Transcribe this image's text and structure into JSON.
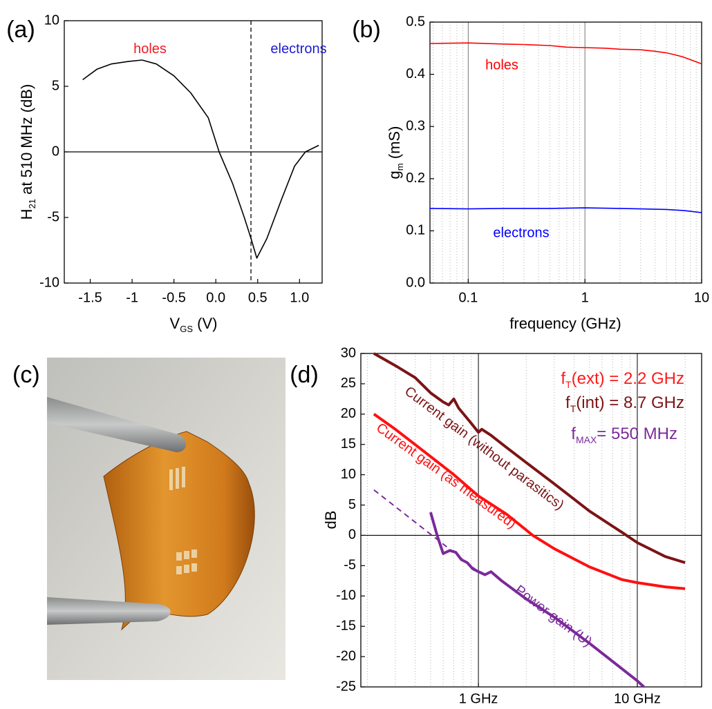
{
  "chart_data": [
    {
      "type": "line",
      "label": "(a)",
      "xlabel": [
        "V",
        "GS",
        " (V)"
      ],
      "ylabel": [
        "H",
        "21",
        " at 510 MHz (dB)"
      ],
      "x": [
        -1.59,
        -1.42,
        -1.25,
        -1.04,
        -0.88,
        -0.71,
        -0.5,
        -0.3,
        -0.09,
        0.04,
        0.2,
        0.34,
        0.42,
        0.49,
        0.61,
        0.78,
        0.94,
        1.07,
        1.23
      ],
      "values": [
        5.5,
        6.3,
        6.7,
        6.9,
        7.0,
        6.7,
        5.8,
        4.5,
        2.6,
        0,
        -2.4,
        -5.0,
        -6.6,
        -8.1,
        -6.6,
        -3.7,
        -1.1,
        0,
        0.5
      ],
      "color": "#000000",
      "xlim": [
        -1.81,
        1.27
      ],
      "xticks": [
        -1.5,
        -1.0,
        -0.5,
        {
          "value": 0,
          "label": "0.0"
        },
        0.5,
        {
          "value": 1,
          "label": "1.0"
        }
      ],
      "ylim": [
        -10,
        10
      ],
      "yticks": [
        -10,
        -5,
        0,
        5,
        10
      ],
      "hlines": [
        0
      ],
      "vlines": [
        0.42
      ],
      "annotations": [
        {
          "text": [
            "holes"
          ],
          "color": "#ee1c25"
        },
        {
          "text": [
            "electrons"
          ],
          "color": "#1c1ccf"
        }
      ]
    },
    {
      "type": "line",
      "label": "(b)",
      "xscale": "log",
      "grid": true,
      "xlabel": [
        "frequency (GHz)"
      ],
      "ylabel": [
        "g",
        "m",
        " (mS)"
      ],
      "series": [
        {
          "name": "holes",
          "color": "#ff0000",
          "x": [
            0.047,
            0.1,
            0.2,
            0.3,
            0.5,
            0.7,
            1,
            1.5,
            2,
            3,
            4,
            5,
            6,
            7,
            8,
            10
          ],
          "values": [
            0.459,
            0.46,
            0.458,
            0.457,
            0.455,
            0.452,
            0.451,
            0.45,
            0.448,
            0.447,
            0.444,
            0.441,
            0.437,
            0.433,
            0.428,
            0.42
          ]
        },
        {
          "name": "electrons",
          "color": "#0000ff",
          "x": [
            0.047,
            0.1,
            0.2,
            0.5,
            1,
            2,
            3,
            5,
            7,
            10
          ],
          "values": [
            0.143,
            0.142,
            0.143,
            0.143,
            0.144,
            0.143,
            0.142,
            0.141,
            0.139,
            0.135
          ]
        }
      ],
      "xlim": [
        0.047,
        10
      ],
      "xticks": [
        0.1,
        1,
        10
      ],
      "xminor": [
        0.05,
        0.06,
        0.07,
        0.08,
        0.09,
        0.2,
        0.3,
        0.4,
        0.5,
        0.6,
        0.7,
        0.8,
        0.9,
        2,
        3,
        4,
        5,
        6,
        7,
        8,
        9
      ],
      "ylim": [
        0,
        0.5
      ],
      "yticks": [
        {
          "value": 0,
          "label": "0.0"
        },
        0.1,
        0.2,
        0.3,
        0.4,
        0.5
      ]
    },
    {
      "type": "line",
      "label": "(d)",
      "xscale": "log",
      "grid": true,
      "ylabel": [
        "dB"
      ],
      "series": [
        {
          "name": "Current gain (without parasitics)",
          "color": "#7b1416",
          "x": [
            0.22,
            0.3,
            0.4,
            0.5,
            0.6,
            0.65,
            0.7,
            0.75,
            0.9,
            1,
            1.05,
            1.2,
            1.5,
            2,
            3,
            5,
            8,
            10,
            15,
            20
          ],
          "values": [
            30,
            28,
            26,
            23.5,
            22,
            21.5,
            22.5,
            21,
            18.5,
            17,
            17.5,
            16.5,
            14.5,
            12,
            8.5,
            4,
            0.5,
            -1.2,
            -3.5,
            -4.5
          ]
        },
        {
          "name": "Current gain (as measured)",
          "color": "#ff1010",
          "x": [
            0.22,
            0.3,
            0.5,
            0.7,
            1,
            1.5,
            2.2,
            3,
            5,
            8,
            10,
            15,
            20
          ],
          "values": [
            20,
            17.5,
            13,
            10,
            6.5,
            3.5,
            0,
            -2.2,
            -5.2,
            -7.3,
            -7.8,
            -8.5,
            -8.8
          ]
        },
        {
          "name": "Power gain (U)",
          "color": "#7b2a9a",
          "x": [
            0.5,
            0.55,
            0.6,
            0.66,
            0.72,
            0.78,
            0.85,
            0.92,
            1,
            1.1,
            1.2,
            1.4,
            2,
            3,
            5,
            8,
            10,
            11
          ],
          "values": [
            3.8,
            0,
            -3,
            -2.5,
            -2.8,
            -4,
            -4.5,
            -5.5,
            -6,
            -6.5,
            -6,
            -7.5,
            -10.5,
            -13.5,
            -17.8,
            -22,
            -24,
            -25
          ]
        },
        {
          "color": "#7b2a9a",
          "dash": true,
          "x": [
            0.22,
            1
          ],
          "values": [
            7.5,
            -6
          ]
        }
      ],
      "xlim": [
        0.182,
        25.4
      ],
      "xticks": [
        {
          "value": 1,
          "label": "1 GHz"
        },
        {
          "value": 10,
          "label": "10 GHz"
        }
      ],
      "xminor": [
        0.2,
        0.3,
        0.4,
        0.5,
        0.6,
        0.7,
        0.8,
        0.9,
        2,
        3,
        4,
        5,
        6,
        7,
        8,
        9,
        20
      ],
      "ylim": [
        -25,
        30
      ],
      "yticks": [
        -25,
        -20,
        -15,
        -10,
        -5,
        0,
        5,
        10,
        15,
        20,
        25,
        30
      ],
      "hlines": [
        0
      ],
      "annotations": [
        {
          "text": [
            "f",
            "T",
            "(ext) = 2.2 GHz"
          ],
          "color": "#ff1a1a"
        },
        {
          "text": [
            "f",
            "T",
            "(int) = 8.7 GHz"
          ],
          "color": "#7b1416"
        },
        {
          "text": [
            "f",
            "MAX",
            "= 550 MHz"
          ],
          "color": "#7b2a9a"
        }
      ]
    }
  ],
  "photo": {
    "label": "(c)"
  }
}
